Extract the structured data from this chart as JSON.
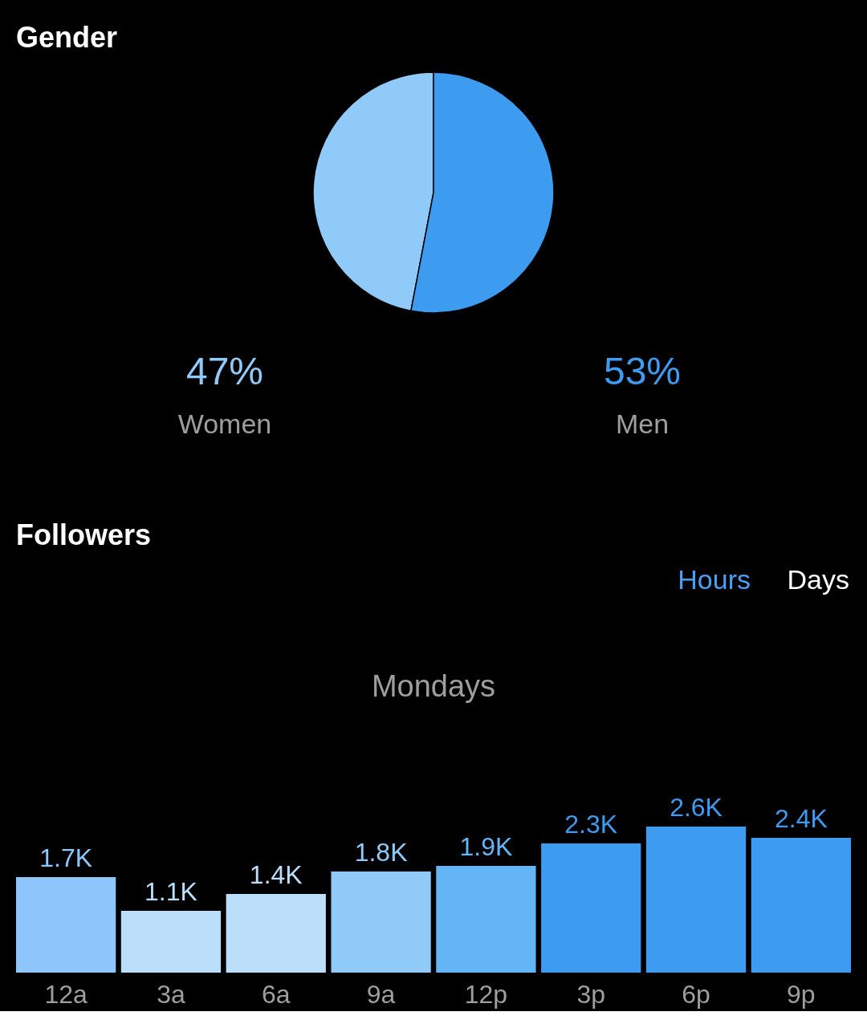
{
  "chart_data": [
    {
      "type": "pie",
      "title": "Gender",
      "categories": [
        "Women",
        "Men"
      ],
      "values": [
        47,
        53
      ],
      "colors": [
        "#90caf9",
        "#3d9bf0"
      ],
      "value_labels": [
        "47%",
        "53%"
      ]
    },
    {
      "type": "bar",
      "title": "Followers",
      "subtitle": "Mondays",
      "annotations": [
        "Hours",
        "Days"
      ],
      "categories": [
        "12a",
        "3a",
        "6a",
        "9a",
        "12p",
        "3p",
        "6p",
        "9p"
      ],
      "values": [
        1.7,
        1.1,
        1.4,
        1.8,
        1.9,
        2.3,
        2.6,
        2.4
      ],
      "colors": [
        "#8ec6fc",
        "#bbdefb",
        "#bbdefb",
        "#90caf9",
        "#64b5f6",
        "#3d9bf0",
        "#3d9bf0",
        "#3d9bf0"
      ],
      "value_labels": [
        "1.7K",
        "1.1K",
        "1.4K",
        "1.8K",
        "1.9K",
        "2.3K",
        "2.6K",
        "2.4K"
      ]
    }
  ]
}
